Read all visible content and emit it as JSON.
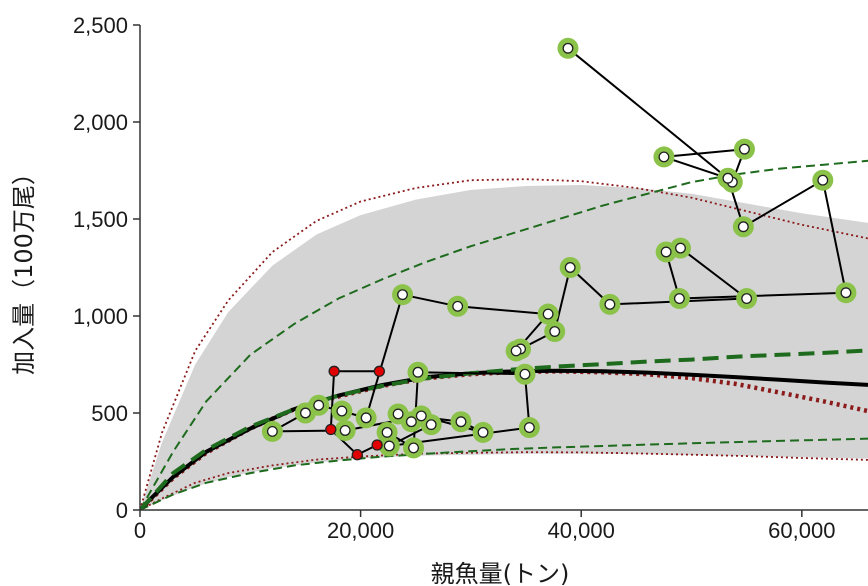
{
  "chart_data": {
    "type": "scatter",
    "title": "",
    "xlabel": "親魚量(トン)",
    "ylabel": "加入量（100万尾）",
    "xlim": [
      0,
      66000
    ],
    "ylim": [
      0,
      2500
    ],
    "x_ticks": [
      0,
      20000,
      40000,
      60000
    ],
    "x_tick_labels": [
      "0",
      "20,000",
      "40,000",
      "60,000"
    ],
    "y_ticks": [
      0,
      500,
      1000,
      1500,
      2000,
      2500
    ],
    "y_tick_labels": [
      "0",
      "500",
      "1,000",
      "1,500",
      "2,000",
      "2,500"
    ],
    "grid": false,
    "colors": {
      "band": "#d4d4d4",
      "main_curve": "#000000",
      "green_dash": "#1e6b1e",
      "red_dot": "#8b1a1a",
      "highlight": "#8bc34a",
      "observed_marker": "#ffffff",
      "recent_marker": "#e00000",
      "path_line": "#000000"
    },
    "band": {
      "x": [
        0,
        2000,
        5000,
        8000,
        12000,
        16000,
        20000,
        25000,
        30000,
        35000,
        40000,
        45000,
        50000,
        55000,
        60000,
        66000
      ],
      "upper": [
        0,
        350,
        750,
        1020,
        1260,
        1420,
        1520,
        1600,
        1650,
        1670,
        1675,
        1660,
        1630,
        1580,
        1530,
        1480
      ],
      "lower": [
        0,
        50,
        120,
        170,
        215,
        245,
        265,
        280,
        285,
        290,
        290,
        288,
        283,
        278,
        272,
        265
      ]
    },
    "series": [
      {
        "style": "solid-thick",
        "x": [
          0,
          1000,
          3000,
          6000,
          10000,
          14000,
          18000,
          22000,
          26000,
          30000,
          34000,
          38000,
          42000,
          46000,
          50000,
          54000,
          58000,
          62000,
          66000
        ],
        "y": [
          0,
          60,
          170,
          300,
          420,
          520,
          590,
          645,
          685,
          705,
          715,
          718,
          715,
          708,
          697,
          685,
          671,
          657,
          645
        ]
      },
      {
        "style": "dashed-thick-green",
        "x": [
          0,
          3000,
          6000,
          10000,
          14000,
          18000,
          22000,
          26000,
          30000,
          34000,
          38000,
          42000,
          46000,
          50000,
          54000,
          58000,
          62000,
          66000
        ],
        "y": [
          0,
          190,
          310,
          430,
          520,
          590,
          640,
          680,
          705,
          725,
          740,
          752,
          765,
          775,
          790,
          800,
          810,
          822
        ]
      },
      {
        "style": "dotted-thick-red",
        "x": [
          0,
          3000,
          6000,
          10000,
          14000,
          18000,
          22000,
          26000,
          30000,
          34000,
          38000,
          42000,
          46000,
          50000,
          54000,
          58000,
          62000,
          66000
        ],
        "y": [
          0,
          165,
          295,
          420,
          520,
          585,
          640,
          680,
          700,
          712,
          715,
          710,
          700,
          680,
          650,
          605,
          560,
          510
        ]
      },
      {
        "style": "dashed-green-upper",
        "x": [
          0,
          3000,
          6000,
          10000,
          14000,
          18000,
          22000,
          26000,
          30000,
          34000,
          38000,
          42000,
          46000,
          50000,
          54000,
          58000,
          62000,
          66000
        ],
        "y": [
          0,
          300,
          560,
          800,
          960,
          1090,
          1190,
          1280,
          1360,
          1430,
          1500,
          1570,
          1630,
          1690,
          1730,
          1760,
          1780,
          1800
        ]
      },
      {
        "style": "dashed-green-lower",
        "x": [
          0,
          3000,
          6000,
          10000,
          14000,
          18000,
          22000,
          26000,
          30000,
          34000,
          38000,
          42000,
          46000,
          50000,
          54000,
          58000,
          62000,
          66000
        ],
        "y": [
          0,
          80,
          140,
          190,
          230,
          255,
          275,
          290,
          303,
          315,
          323,
          330,
          337,
          344,
          350,
          356,
          362,
          368
        ]
      },
      {
        "style": "dotted-red-upper",
        "x": [
          0,
          2000,
          5000,
          8000,
          12000,
          16000,
          20000,
          25000,
          30000,
          35000,
          40000,
          45000,
          50000,
          55000,
          60000,
          66000
        ],
        "y": [
          0,
          400,
          820,
          1080,
          1330,
          1490,
          1590,
          1660,
          1700,
          1705,
          1695,
          1660,
          1610,
          1540,
          1470,
          1400
        ]
      },
      {
        "style": "dotted-red-lower",
        "x": [
          0,
          2000,
          5000,
          8000,
          12000,
          16000,
          20000,
          25000,
          30000,
          35000,
          40000,
          45000,
          50000,
          55000,
          60000,
          66000
        ],
        "y": [
          0,
          60,
          140,
          190,
          230,
          260,
          275,
          290,
          295,
          298,
          297,
          292,
          285,
          278,
          268,
          258
        ]
      }
    ],
    "observed_path": {
      "x": [
        38800,
        53700,
        54800,
        47500,
        53300,
        54700,
        61900,
        64000,
        48900,
        47700,
        49000,
        55000,
        42600,
        39000,
        37600,
        34500,
        34100,
        37000,
        28800,
        23800,
        20500,
        18300,
        16200,
        15000,
        12000,
        18600,
        25500,
        31100,
        29100,
        23400,
        24600,
        26400,
        22600,
        35300,
        34900,
        25200,
        24800,
        22400
      ],
      "y": [
        2380,
        1690,
        1860,
        1820,
        1710,
        1460,
        1700,
        1120,
        1090,
        1330,
        1350,
        1090,
        1060,
        1250,
        920,
        830,
        820,
        1010,
        1050,
        1110,
        475,
        510,
        540,
        500,
        405,
        410,
        485,
        400,
        455,
        495,
        455,
        440,
        330,
        425,
        700,
        710,
        320,
        400
      ]
    },
    "recent_path": {
      "x": [
        21700,
        17600,
        17300,
        19700,
        21500
      ],
      "y": [
        715,
        715,
        415,
        285,
        335
      ]
    }
  }
}
